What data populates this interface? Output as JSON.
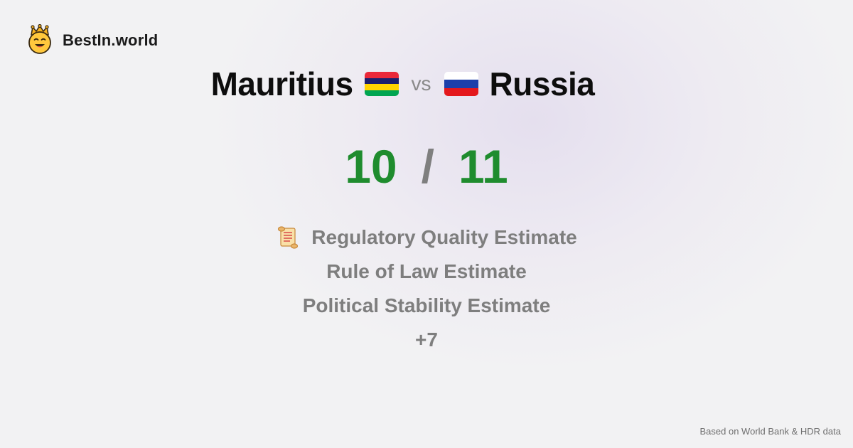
{
  "brand": {
    "name": "BestIn.world",
    "logo_icon": "crowned-smiley-icon"
  },
  "comparison": {
    "left_country": "Mauritius",
    "left_flag_icon": "mauritius-flag-icon",
    "left_flag_colors": [
      "#EA2839",
      "#1A206D",
      "#FFD500",
      "#00A551"
    ],
    "vs_label": "vs",
    "right_country": "Russia",
    "right_flag_icon": "russia-flag-icon",
    "right_flag_colors": [
      "#FFFFFF",
      "#1C3FAA",
      "#E4181C"
    ]
  },
  "score": {
    "left": "10",
    "separator": "/",
    "right": "11",
    "color": "#1F8C2E"
  },
  "metrics": [
    {
      "label": "Regulatory Quality Estimate",
      "icon": "scroll-icon"
    },
    {
      "label": "Rule of Law Estimate"
    },
    {
      "label": "Political Stability Estimate"
    }
  ],
  "more_label": "+7",
  "footer": {
    "source": "Based on World Bank & HDR data"
  }
}
